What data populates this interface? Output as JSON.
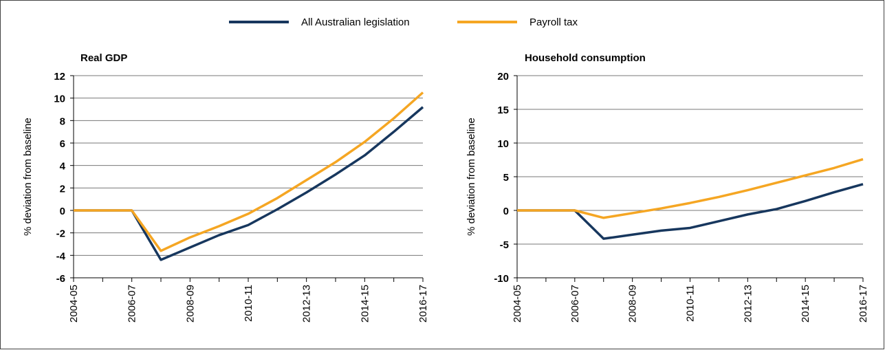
{
  "chart_data": [
    {
      "type": "line",
      "title": "Real GDP",
      "y_label": "% deviation from baseline",
      "categories": [
        "2004-05",
        null,
        "2006-07",
        null,
        "2008-09",
        null,
        "2010-11",
        null,
        "2012-13",
        null,
        "2014-15",
        null,
        "2016-17"
      ],
      "series": [
        {
          "name": "All Australian legislation",
          "color": "#17375e",
          "values": [
            0,
            0,
            0,
            -4.4,
            -3.3,
            -2.2,
            -1.3,
            0.1,
            1.6,
            3.2,
            4.9,
            7.0,
            9.2
          ]
        },
        {
          "name": "Payroll tax",
          "color": "#f5a623",
          "values": [
            0,
            0,
            0,
            -3.6,
            -2.4,
            -1.4,
            -0.3,
            1.1,
            2.7,
            4.3,
            6.1,
            8.2,
            10.5
          ]
        }
      ],
      "ylim": [
        -6,
        12
      ],
      "yticks": [
        -6,
        -4,
        -2,
        0,
        2,
        4,
        6,
        8,
        10,
        12
      ],
      "grid": true
    },
    {
      "type": "line",
      "title": "Household consumption",
      "y_label": "% deviation from baseline",
      "categories": [
        "2004-05",
        null,
        "2006-07",
        null,
        "2008-09",
        null,
        "2010-11",
        null,
        "2012-13",
        null,
        "2014-15",
        null,
        "2016-17"
      ],
      "series": [
        {
          "color": "#17375e",
          "values": [
            0,
            0,
            0,
            -4.2,
            -3.6,
            -3.0,
            -2.6,
            -1.6,
            -0.6,
            0.2,
            1.4,
            2.7,
            3.9
          ]
        },
        {
          "color": "#f5a623",
          "values": [
            0,
            0,
            0,
            -1.1,
            -0.4,
            0.3,
            1.1,
            2.0,
            3.0,
            4.1,
            5.2,
            6.3,
            7.6
          ]
        }
      ],
      "ylim": [
        -10,
        20
      ],
      "yticks": [
        -10,
        -5,
        0,
        5,
        10,
        15,
        20
      ],
      "grid": true
    }
  ]
}
